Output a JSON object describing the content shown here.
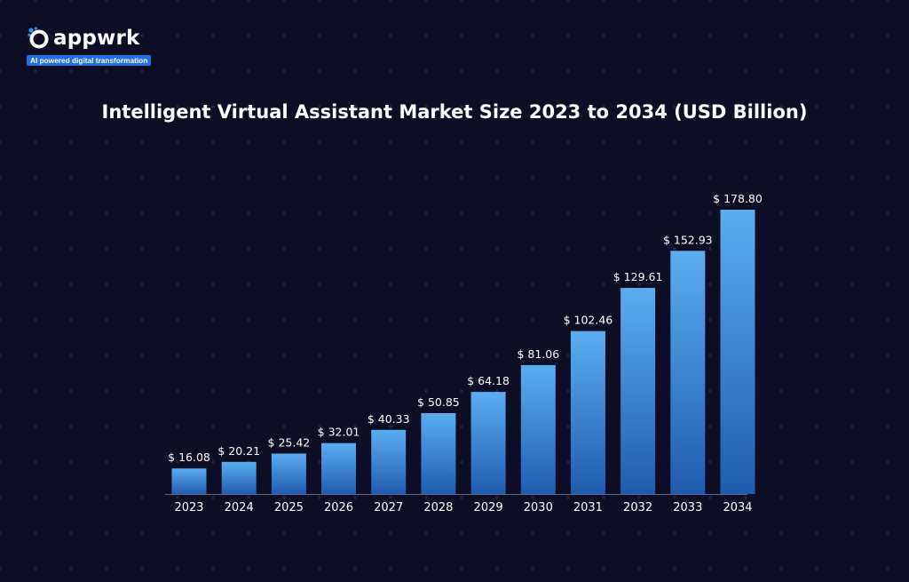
{
  "brand": {
    "name": "appwrk",
    "tagline": "AI powered digital transformation",
    "accent": "#1f6fe5"
  },
  "chart_data": {
    "type": "bar",
    "title": "Intelligent Virtual Assistant Market Size 2023 to 2034 (USD Billion)",
    "xlabel": "",
    "ylabel": "",
    "categories": [
      "2023",
      "2024",
      "2025",
      "2026",
      "2027",
      "2028",
      "2029",
      "2030",
      "2031",
      "2032",
      "2033",
      "2034"
    ],
    "values": [
      16.08,
      20.21,
      25.42,
      32.01,
      40.33,
      50.85,
      64.18,
      81.06,
      102.46,
      129.61,
      152.93,
      178.8
    ],
    "data_labels": [
      "$ 16.08",
      "$ 20.21",
      "$ 25.42",
      "$ 32.01",
      "$ 40.33",
      "$ 50.85",
      "$ 64.18",
      "$ 81.06",
      "$ 102.46",
      "$ 129.61",
      "$ 152.93",
      "$ 178.80"
    ],
    "ylim": [
      0,
      178.8
    ],
    "grid": false,
    "legend": "none",
    "bar_color_top": "#5aaef0",
    "bar_color_bottom": "#1f5cb0",
    "background": "#0e0d26"
  }
}
